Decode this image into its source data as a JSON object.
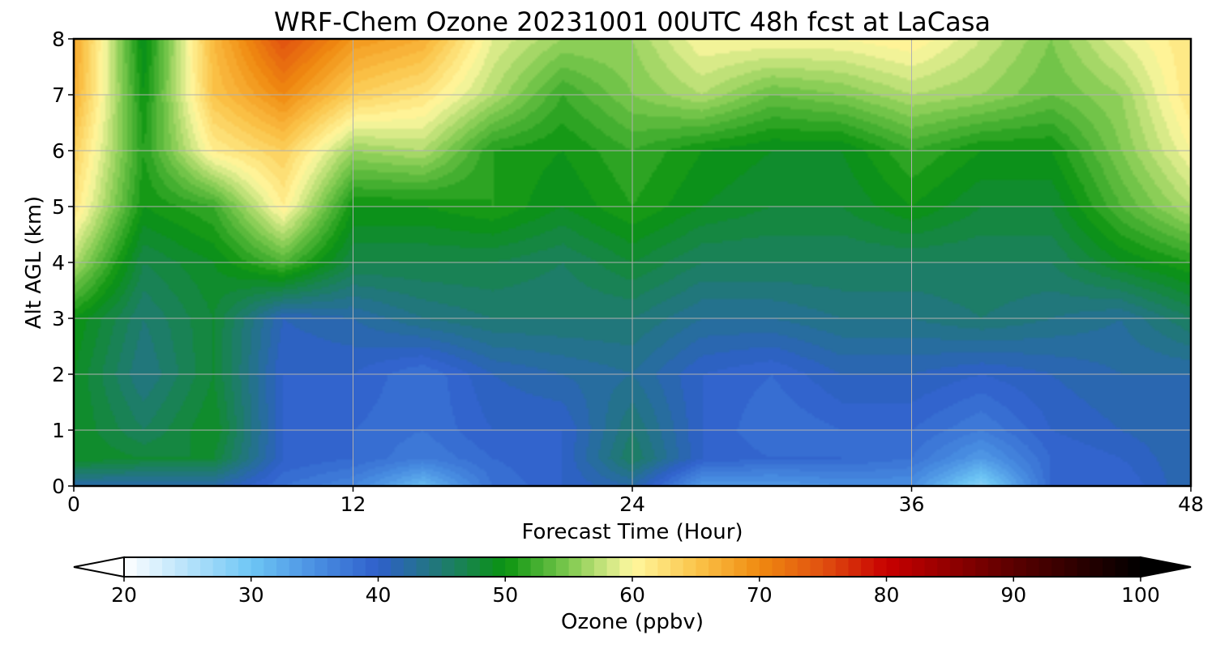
{
  "chart_data": {
    "type": "heatmap",
    "title": "WRF-Chem Ozone  20231001 00UTC 48h fcst at LaCasa",
    "xlabel": "Forecast Time (Hour)",
    "ylabel": "Alt AGL (km)",
    "xlim": [
      0,
      48
    ],
    "ylim": [
      0,
      8
    ],
    "xticks": [
      "0",
      "12",
      "24",
      "36",
      "48"
    ],
    "yticks": [
      "0",
      "1",
      "2",
      "3",
      "4",
      "5",
      "6",
      "7",
      "8"
    ],
    "grid": true,
    "colorbar": {
      "label": "Ozone  (ppbv)",
      "range": [
        20,
        100
      ],
      "ticks": [
        "20",
        "30",
        "40",
        "50",
        "60",
        "70",
        "80",
        "90",
        "100"
      ],
      "extend": "both",
      "colors": [
        {
          "v": 20,
          "c": "#ffffff"
        },
        {
          "v": 30,
          "c": "#6ec6f5"
        },
        {
          "v": 35,
          "c": "#4a90e2"
        },
        {
          "v": 40,
          "c": "#2f5fcb"
        },
        {
          "v": 45,
          "c": "#1f7a72"
        },
        {
          "v": 50,
          "c": "#0a9410"
        },
        {
          "v": 55,
          "c": "#7ec94f"
        },
        {
          "v": 60,
          "c": "#fff8a0"
        },
        {
          "v": 65,
          "c": "#fbc54a"
        },
        {
          "v": 70,
          "c": "#f08a10"
        },
        {
          "v": 75,
          "c": "#e05010"
        },
        {
          "v": 80,
          "c": "#c80000"
        },
        {
          "v": 90,
          "c": "#5a0000"
        },
        {
          "v": 100,
          "c": "#000000"
        }
      ]
    },
    "x": [
      0,
      3,
      6,
      9,
      12,
      15,
      18,
      21,
      24,
      27,
      30,
      33,
      36,
      39,
      42,
      45,
      48
    ],
    "y": [
      0,
      0.5,
      1,
      2,
      3,
      4,
      5,
      6,
      7,
      8
    ],
    "z": [
      [
        42,
        42,
        42,
        38,
        36,
        31,
        38,
        40,
        42,
        34,
        34,
        35,
        35,
        28,
        39,
        39,
        42
      ],
      [
        49,
        48,
        48,
        40,
        39,
        37,
        39,
        40,
        46,
        40,
        39,
        39,
        38,
        34,
        39,
        40,
        42
      ],
      [
        49,
        46,
        49,
        40,
        39,
        38,
        40,
        40,
        45,
        40,
        38,
        39,
        39,
        37,
        40,
        41,
        42
      ],
      [
        49,
        44,
        48,
        40,
        40,
        38,
        41,
        42,
        43,
        40,
        39,
        41,
        41,
        40,
        41,
        42,
        42
      ],
      [
        50,
        45,
        48,
        41,
        42,
        44,
        45,
        45,
        45,
        43,
        43,
        44,
        44,
        45,
        44,
        43,
        46
      ],
      [
        57,
        47,
        49,
        53,
        47,
        47,
        47,
        46,
        48,
        46,
        46,
        46,
        46,
        46,
        46,
        49,
        51
      ],
      [
        62,
        50,
        52,
        61,
        50,
        50,
        51,
        49,
        51,
        49,
        48,
        48,
        50,
        48,
        48,
        53,
        57
      ],
      [
        64,
        51,
        61,
        64,
        56,
        57,
        51,
        50,
        52,
        50,
        49,
        49,
        52,
        50,
        50,
        55,
        60
      ],
      [
        67,
        50,
        65,
        70,
        64,
        62,
        57,
        52,
        55,
        57,
        54,
        55,
        57,
        56,
        54,
        56,
        62
      ],
      [
        68,
        49,
        66,
        75,
        69,
        67,
        59,
        56,
        56,
        60,
        60,
        60,
        61,
        58,
        55,
        59,
        62
      ]
    ]
  }
}
